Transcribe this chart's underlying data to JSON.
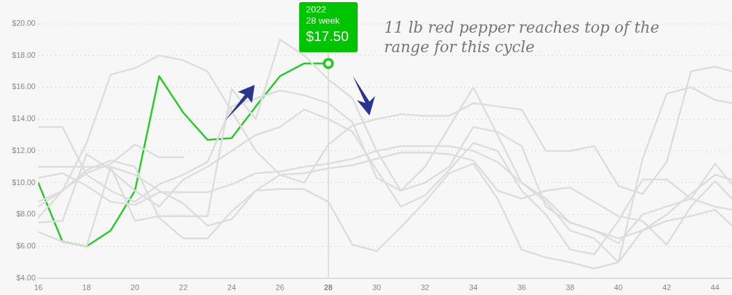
{
  "chart_data": {
    "type": "line",
    "x": [
      16,
      17,
      18,
      19,
      20,
      21,
      22,
      23,
      24,
      25,
      26,
      27,
      28,
      29,
      30,
      31,
      32,
      33,
      34,
      35,
      36,
      37,
      38,
      39,
      40,
      41,
      42,
      43,
      44,
      44.7
    ],
    "xlim": [
      16,
      44.7
    ],
    "xticks": [
      16,
      18,
      20,
      22,
      24,
      26,
      28,
      30,
      32,
      34,
      36,
      38,
      40,
      42,
      44
    ],
    "ylim": [
      4,
      20
    ],
    "yticks": [
      {
        "value": 4,
        "label": "$4.00"
      },
      {
        "value": 6,
        "label": "$6.00"
      },
      {
        "value": 8,
        "label": "$8.00"
      },
      {
        "value": 10,
        "label": "$10.00"
      },
      {
        "value": 12,
        "label": "$12.00"
      },
      {
        "value": 14,
        "label": "$14.00"
      },
      {
        "value": 16,
        "label": "$16.00"
      },
      {
        "value": 18,
        "label": "$18.00"
      },
      {
        "value": 20,
        "label": "$20.00"
      }
    ],
    "grid": "y",
    "legend": false,
    "marker": "none",
    "line_style": "solid",
    "series": [
      {
        "color": "#dddddd",
        "values": [
          7.8,
          9.5,
          12.5,
          16.8,
          17.2,
          18.0,
          17.7,
          17.0,
          14.5,
          12.0,
          10.5,
          10.0,
          12.4,
          13.6,
          14.0,
          14.3,
          14.2,
          14.2,
          15.0,
          14.8,
          14.6,
          12.0,
          12.0,
          12.3,
          9.8,
          9.3,
          11.3,
          17.0,
          17.3,
          17.0
        ]
      },
      {
        "color": "#dddddd",
        "values": [
          13.5,
          13.5,
          10.5,
          9.5,
          8.8,
          9.9,
          10.5,
          11.3,
          14.8,
          15.3,
          15.8,
          15.5,
          15.0,
          13.8,
          10.3,
          9.5,
          11.0,
          13.5,
          16.0,
          13.0,
          10.0,
          8.8,
          7.0,
          6.5,
          5.0,
          11.5,
          15.6,
          16.0,
          15.2,
          15.0
        ]
      },
      {
        "color": "#dddddd",
        "values": [
          11.0,
          11.0,
          11.0,
          11.0,
          10.5,
          9.5,
          8.7,
          7.3,
          7.7,
          9.5,
          10.5,
          10.6,
          10.9,
          11.1,
          11.5,
          11.9,
          11.9,
          11.8,
          11.4,
          9.5,
          9.0,
          9.5,
          9.7,
          8.8,
          7.9,
          7.6,
          6.1,
          8.5,
          10.1,
          9.0
        ]
      },
      {
        "color": "#dddddd",
        "values": [
          6.9,
          6.3,
          6.0,
          11.0,
          7.6,
          7.9,
          7.9,
          7.9,
          15.9,
          14.0,
          19.0,
          18.0,
          16.5,
          15.3,
          12.0,
          9.5,
          10.0,
          11.0,
          13.5,
          13.2,
          12.3,
          8.5,
          7.5,
          7.0,
          6.2,
          8.0,
          8.5,
          9.0,
          11.2,
          9.9
        ]
      },
      {
        "color": "#dddddd",
        "values": [
          10.3,
          10.6,
          9.8,
          8.8,
          8.6,
          9.4,
          9.4,
          9.4,
          9.9,
          10.6,
          10.7,
          11.0,
          11.2,
          11.5,
          12.0,
          12.3,
          12.3,
          12.3,
          12.0,
          11.3,
          10.0,
          9.0,
          7.5,
          7.0,
          6.5,
          7.0,
          8.0,
          9.3,
          10.5,
          10.2
        ]
      },
      {
        "color": "#dddddd",
        "values": [
          8.5,
          9.5,
          10.8,
          11.4,
          11.0,
          7.8,
          6.5,
          6.5,
          8.2,
          9.5,
          9.6,
          9.6,
          8.8,
          6.1,
          5.7,
          7.2,
          8.8,
          10.6,
          11.2,
          9.0,
          5.8,
          5.3,
          5.0,
          4.6,
          5.0,
          7.0,
          7.6,
          7.9,
          8.3,
          7.3
        ]
      },
      {
        "color": "#dddddd",
        "values": [
          7.5,
          7.6,
          11.8,
          10.8,
          9.5,
          8.5,
          10.2,
          11.0,
          12.0,
          13.0,
          13.5,
          14.6,
          14.0,
          13.2,
          10.8,
          8.5,
          9.2,
          10.8,
          12.5,
          12.0,
          9.5,
          8.0,
          5.8,
          5.5,
          7.6,
          10.2,
          10.2,
          9.0,
          8.5,
          8.3
        ]
      },
      {
        "color": "#dddddd",
        "values": [
          8.8,
          9.5,
          10.6,
          11.2,
          12.4,
          11.6,
          11.6,
          null,
          null,
          null,
          null,
          null,
          null,
          null,
          null,
          null,
          null,
          null,
          null,
          null,
          null,
          null,
          null,
          null,
          null,
          null,
          null,
          null,
          null,
          null
        ]
      },
      {
        "color": "#22cc22",
        "values": [
          10.0,
          6.3,
          6.0,
          7.0,
          9.5,
          16.7,
          14.4,
          12.7,
          12.8,
          14.8,
          16.7,
          17.5,
          17.5,
          null,
          null,
          null,
          null,
          null,
          null,
          null,
          null,
          null,
          null,
          null,
          null,
          null,
          null,
          null,
          null,
          null
        ]
      }
    ],
    "ref_lines": [
      {
        "axis": "x",
        "value": 28,
        "color": "#dddddd"
      }
    ],
    "annotations": [
      {
        "text": "2022\n28 week\n$17.50",
        "x": 28,
        "y": 17.5
      },
      "11 lb red pepper reaches top of the range for this cycle"
    ]
  }
}
